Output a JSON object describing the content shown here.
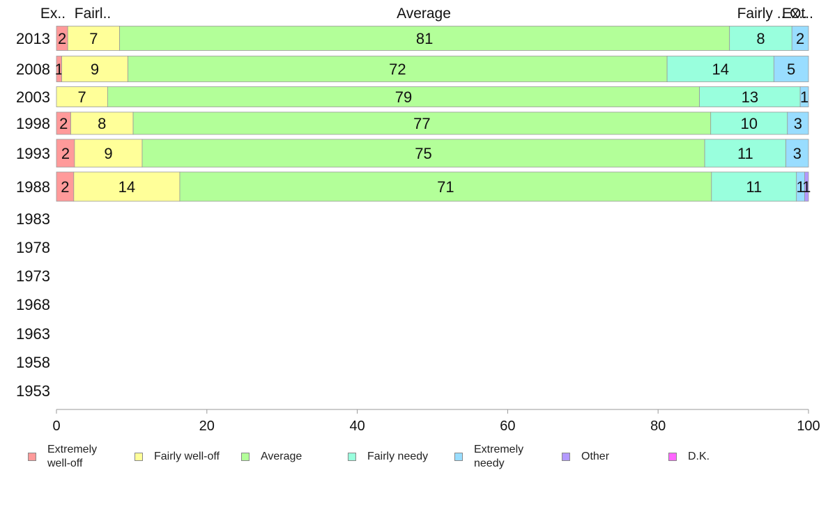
{
  "chart_data": {
    "type": "bar",
    "orientation": "horizontal",
    "stacked": true,
    "categories": [
      "2013",
      "2008",
      "2003",
      "1998",
      "1993",
      "1988",
      "1983",
      "1978",
      "1973",
      "1968",
      "1963",
      "1958",
      "1953"
    ],
    "xlim": [
      0,
      100
    ],
    "x_ticks": [
      "0",
      "20",
      "40",
      "60",
      "80",
      "100"
    ],
    "top_labels": [
      "Ex..",
      "Fairl..",
      "Average",
      "Fairly ..",
      "Ex..",
      "Ot.."
    ],
    "series": [
      {
        "name": "Extremely well-off",
        "color": "#ff9a9a",
        "values": [
          1.5,
          0.7,
          0,
          1.9,
          2.4,
          2.3,
          null,
          null,
          null,
          null,
          null,
          null,
          null
        ],
        "labels": [
          "2",
          "1",
          "",
          "2",
          "2",
          "2",
          "",
          "",
          "",
          "",
          "",
          "",
          ""
        ]
      },
      {
        "name": "Fairly well-off",
        "color": "#ffff99",
        "values": [
          6.9,
          8.8,
          6.8,
          8.3,
          9.0,
          14.1,
          null,
          null,
          null,
          null,
          null,
          null,
          null
        ],
        "labels": [
          "7",
          "9",
          "7",
          "8",
          "9",
          "14",
          "",
          "",
          "",
          "",
          "",
          "",
          ""
        ]
      },
      {
        "name": "Average",
        "color": "#b3ff99",
        "values": [
          81.1,
          71.7,
          78.7,
          76.8,
          74.8,
          70.7,
          null,
          null,
          null,
          null,
          null,
          null,
          null
        ],
        "labels": [
          "81",
          "72",
          "79",
          "77",
          "75",
          "71",
          "",
          "",
          "",
          "",
          "",
          "",
          ""
        ]
      },
      {
        "name": "Fairly needy",
        "color": "#99ffdd",
        "values": [
          8.3,
          14.2,
          13.4,
          10.2,
          10.8,
          11.3,
          null,
          null,
          null,
          null,
          null,
          null,
          null
        ],
        "labels": [
          "8",
          "14",
          "13",
          "10",
          "11",
          "11",
          "",
          "",
          "",
          "",
          "",
          "",
          ""
        ]
      },
      {
        "name": "Extremely needy",
        "color": "#99ddff",
        "values": [
          2.2,
          4.6,
          1.1,
          2.8,
          3.0,
          1.1,
          null,
          null,
          null,
          null,
          null,
          null,
          null
        ],
        "labels": [
          "2",
          "5",
          "1",
          "3",
          "3",
          "1",
          "",
          "",
          "",
          "",
          "",
          "",
          ""
        ]
      },
      {
        "name": "Other",
        "color": "#b399ff",
        "values": [
          0,
          0,
          0,
          0,
          0,
          0.5,
          null,
          null,
          null,
          null,
          null,
          null,
          null
        ],
        "labels": [
          "",
          "",
          "",
          "",
          "",
          "1",
          "",
          "",
          "",
          "",
          "",
          "",
          ""
        ]
      },
      {
        "name": "D.K.",
        "color": "#ff66ff",
        "values": [
          0,
          0,
          0,
          0,
          0,
          0,
          null,
          null,
          null,
          null,
          null,
          null,
          null
        ],
        "labels": [
          "",
          "",
          "",
          "",
          "",
          "",
          "",
          "",
          "",
          "",
          "",
          "",
          ""
        ]
      }
    ],
    "legend": {
      "position": "bottom",
      "labels": [
        [
          "Extremely",
          "well-off"
        ],
        [
          "Fairly well-off"
        ],
        [
          "Average"
        ],
        [
          "Fairly needy"
        ],
        [
          "Extremely",
          "needy"
        ],
        [
          "Other"
        ],
        [
          "D.K."
        ]
      ]
    },
    "grid": false
  }
}
